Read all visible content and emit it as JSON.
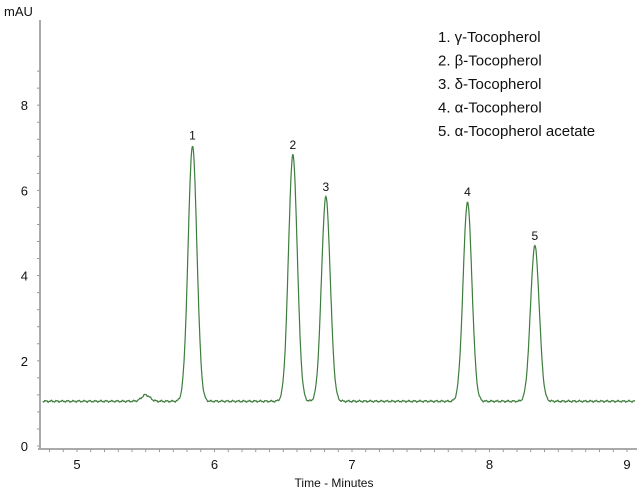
{
  "chart_data": {
    "type": "line",
    "title": "",
    "xlabel": "Time - Minutes",
    "ylabel": "mAU",
    "xlim": [
      4.73,
      9.06
    ],
    "ylim": [
      0,
      9.4
    ],
    "x_ticks": [
      "5",
      "6",
      "7",
      "8",
      "9"
    ],
    "y_ticks": [
      "0",
      "2",
      "4",
      "6",
      "8"
    ],
    "grid": false,
    "legend_placement": "top-right",
    "line_color": "#3d7d3d",
    "baseline": 1.05,
    "peaks": [
      {
        "label": "1",
        "time": 5.84,
        "height": 7.05,
        "name": "1. γ-Tocopherol"
      },
      {
        "label": "2",
        "time": 6.57,
        "height": 6.83,
        "name": "2. β-Tocopherol"
      },
      {
        "label": "3",
        "time": 6.81,
        "height": 5.85,
        "name": "3. δ-Tocopherol"
      },
      {
        "label": "4",
        "time": 7.84,
        "height": 5.73,
        "name": "4. α-Tocopherol"
      },
      {
        "label": "5",
        "time": 8.33,
        "height": 4.7,
        "name": "5. α-Tocopherol acetate"
      }
    ],
    "minor_features": [
      {
        "time": 5.5,
        "height": 1.2
      }
    ]
  }
}
